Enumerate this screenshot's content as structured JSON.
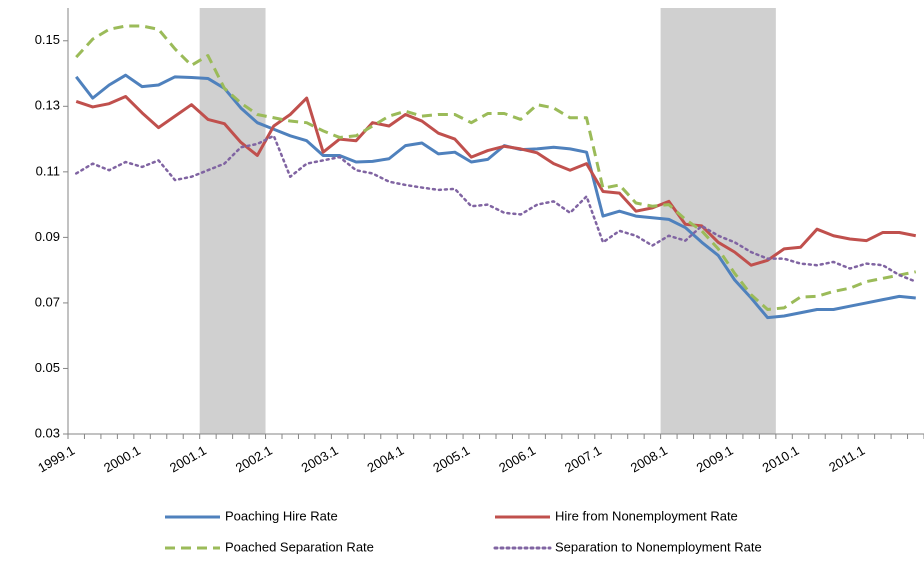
{
  "chart_data": {
    "type": "line",
    "categories": [
      "1999.1",
      null,
      null,
      null,
      "2000.1",
      null,
      null,
      null,
      "2001.1",
      null,
      null,
      null,
      "2002.1",
      null,
      null,
      null,
      "2003.1",
      null,
      null,
      null,
      "2004.1",
      null,
      null,
      null,
      "2005.1",
      null,
      null,
      null,
      "2006.1",
      null,
      null,
      null,
      "2007.1",
      null,
      null,
      null,
      "2008.1",
      null,
      null,
      null,
      "2009.1",
      null,
      null,
      null,
      "2010.1",
      null,
      null,
      null,
      "2011.1",
      null,
      null,
      null
    ],
    "ylim": [
      0.03,
      0.16
    ],
    "yticks": [
      0.03,
      0.05,
      0.07,
      0.09,
      0.11,
      0.13,
      0.15
    ],
    "shaded": [
      {
        "from": 8,
        "to": 12,
        "color": "#d0d0d0"
      },
      {
        "from": 36,
        "to": 43,
        "color": "#d0d0d0"
      }
    ],
    "series": [
      {
        "name": "Poaching Hire Rate",
        "color": "#4f81bd",
        "dash": "solid",
        "values": [
          0.139,
          0.1325,
          0.1365,
          0.1395,
          0.136,
          0.1365,
          0.139,
          0.1388,
          0.1385,
          0.1355,
          0.1295,
          0.125,
          0.123,
          0.121,
          0.1195,
          0.115,
          0.115,
          0.113,
          0.1132,
          0.114,
          0.118,
          0.1188,
          0.1155,
          0.116,
          0.113,
          0.1138,
          0.118,
          0.1168,
          0.117,
          0.1175,
          0.117,
          0.116,
          0.0965,
          0.098,
          0.0965,
          0.096,
          0.0955,
          0.093,
          0.0885,
          0.0845,
          0.077,
          0.0715,
          0.0655,
          0.066,
          0.067,
          0.068,
          0.068,
          0.069,
          0.07,
          0.071,
          0.072,
          0.0715
        ]
      },
      {
        "name": "Hire from Nonemployment Rate",
        "color": "#c0504d",
        "dash": "solid",
        "values": [
          0.1315,
          0.1298,
          0.1308,
          0.133,
          0.128,
          0.1235,
          0.127,
          0.1305,
          0.126,
          0.1247,
          0.119,
          0.115,
          0.124,
          0.1275,
          0.1325,
          0.116,
          0.12,
          0.1195,
          0.125,
          0.124,
          0.1275,
          0.1255,
          0.1218,
          0.12,
          0.1145,
          0.1165,
          0.1178,
          0.117,
          0.1158,
          0.1125,
          0.1105,
          0.1125,
          0.104,
          0.1035,
          0.098,
          0.099,
          0.101,
          0.094,
          0.0935,
          0.0885,
          0.0855,
          0.0815,
          0.083,
          0.0865,
          0.087,
          0.0925,
          0.0905,
          0.0895,
          0.089,
          0.0915,
          0.0915,
          0.0905
        ]
      },
      {
        "name": "Poached Separation Rate",
        "color": "#9bbb59",
        "dash": "dashed",
        "values": [
          0.145,
          0.1505,
          0.1535,
          0.1545,
          0.1545,
          0.1535,
          0.1475,
          0.1425,
          0.1455,
          0.1355,
          0.131,
          0.1275,
          0.1265,
          0.1255,
          0.125,
          0.1225,
          0.1205,
          0.121,
          0.124,
          0.127,
          0.1285,
          0.127,
          0.1275,
          0.1275,
          0.125,
          0.1278,
          0.1278,
          0.126,
          0.1305,
          0.1295,
          0.1265,
          0.1265,
          0.105,
          0.106,
          0.1005,
          0.0995,
          0.1,
          0.0955,
          0.092,
          0.0865,
          0.079,
          0.0725,
          0.068,
          0.0685,
          0.0718,
          0.072,
          0.0735,
          0.0745,
          0.0765,
          0.0775,
          0.0785,
          0.0795
        ]
      },
      {
        "name": "Separation to Nonemployment Rate",
        "color": "#8064a2",
        "dash": "dotted",
        "values": [
          0.1095,
          0.1125,
          0.1105,
          0.113,
          0.1115,
          0.1135,
          0.1075,
          0.1085,
          0.1105,
          0.1125,
          0.1175,
          0.1185,
          0.121,
          0.1085,
          0.1125,
          0.1135,
          0.1145,
          0.1105,
          0.1095,
          0.107,
          0.106,
          0.1052,
          0.1045,
          0.1048,
          0.0995,
          0.1,
          0.0975,
          0.097,
          0.1,
          0.101,
          0.0975,
          0.1025,
          0.0885,
          0.092,
          0.0905,
          0.0875,
          0.0905,
          0.089,
          0.0935,
          0.0905,
          0.0885,
          0.0855,
          0.0835,
          0.0835,
          0.082,
          0.0815,
          0.0825,
          0.0805,
          0.082,
          0.0815,
          0.0785,
          0.0765
        ]
      }
    ]
  }
}
